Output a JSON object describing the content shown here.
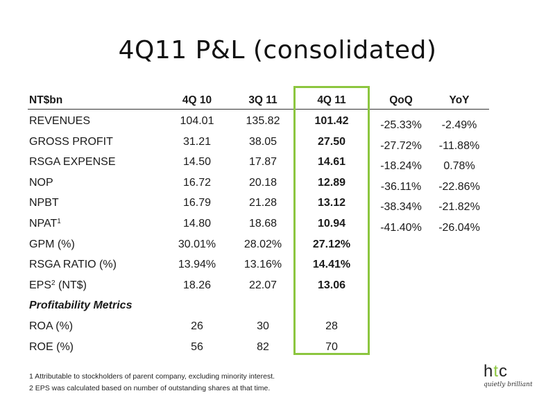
{
  "title": "4Q11 P&L (consolidated)",
  "header": {
    "label": "NT$bn",
    "col1": "4Q 10",
    "col2": "3Q 11",
    "col3": "4Q 11",
    "col4": "QoQ",
    "col5": "YoY"
  },
  "rows": [
    {
      "label": "REVENUES",
      "sup": "",
      "after": "",
      "v1": "104.01",
      "v2": "135.82",
      "v3": "101.42",
      "qoq": "-25.33%",
      "yoy": "-2.49%"
    },
    {
      "label": "GROSS PROFIT",
      "sup": "",
      "after": "",
      "v1": "31.21",
      "v2": "38.05",
      "v3": "27.50",
      "qoq": "-27.72%",
      "yoy": "-11.88%"
    },
    {
      "label": "RSGA EXPENSE",
      "sup": "",
      "after": "",
      "v1": "14.50",
      "v2": "17.87",
      "v3": "14.61",
      "qoq": "-18.24%",
      "yoy": "0.78%"
    },
    {
      "label": "NOP",
      "sup": "",
      "after": "",
      "v1": "16.72",
      "v2": "20.18",
      "v3": "12.89",
      "qoq": "-36.11%",
      "yoy": "-22.86%"
    },
    {
      "label": "NPBT",
      "sup": "",
      "after": "",
      "v1": "16.79",
      "v2": "21.28",
      "v3": "13.12",
      "qoq": "-38.34%",
      "yoy": "-21.82%"
    },
    {
      "label": "NPAT",
      "sup": "1",
      "after": "",
      "v1": "14.80",
      "v2": "18.68",
      "v3": "10.94",
      "qoq": "-41.40%",
      "yoy": "-26.04%"
    },
    {
      "label": "GPM (%)",
      "sup": "",
      "after": "",
      "v1": "30.01%",
      "v2": "28.02%",
      "v3": "27.12%",
      "qoq": "",
      "yoy": ""
    },
    {
      "label": "RSGA RATIO (%)",
      "sup": "",
      "after": "",
      "v1": "13.94%",
      "v2": "13.16%",
      "v3": "14.41%",
      "qoq": "",
      "yoy": ""
    },
    {
      "label": "EPS",
      "sup": "2",
      "after": " (NT$)",
      "v1": "18.26",
      "v2": "22.07",
      "v3": "13.06",
      "qoq": "",
      "yoy": ""
    }
  ],
  "section": "Profitability Metrics",
  "metrics": [
    {
      "label": "ROA (%)",
      "v1": "26",
      "v2": "30",
      "v3": "28"
    },
    {
      "label": "ROE (%)",
      "v1": "56",
      "v2": "82",
      "v3": "70"
    }
  ],
  "footnotes": [
    "1  Attributable to stockholders of parent company, excluding minority interest.",
    "2  EPS was calculated based on number of outstanding shares at that time."
  ],
  "logo": {
    "mark_h": "h",
    "mark_t": "t",
    "mark_c": "c",
    "tagline": "quietly brilliant"
  },
  "colors": {
    "highlight": "#8cc63f"
  }
}
